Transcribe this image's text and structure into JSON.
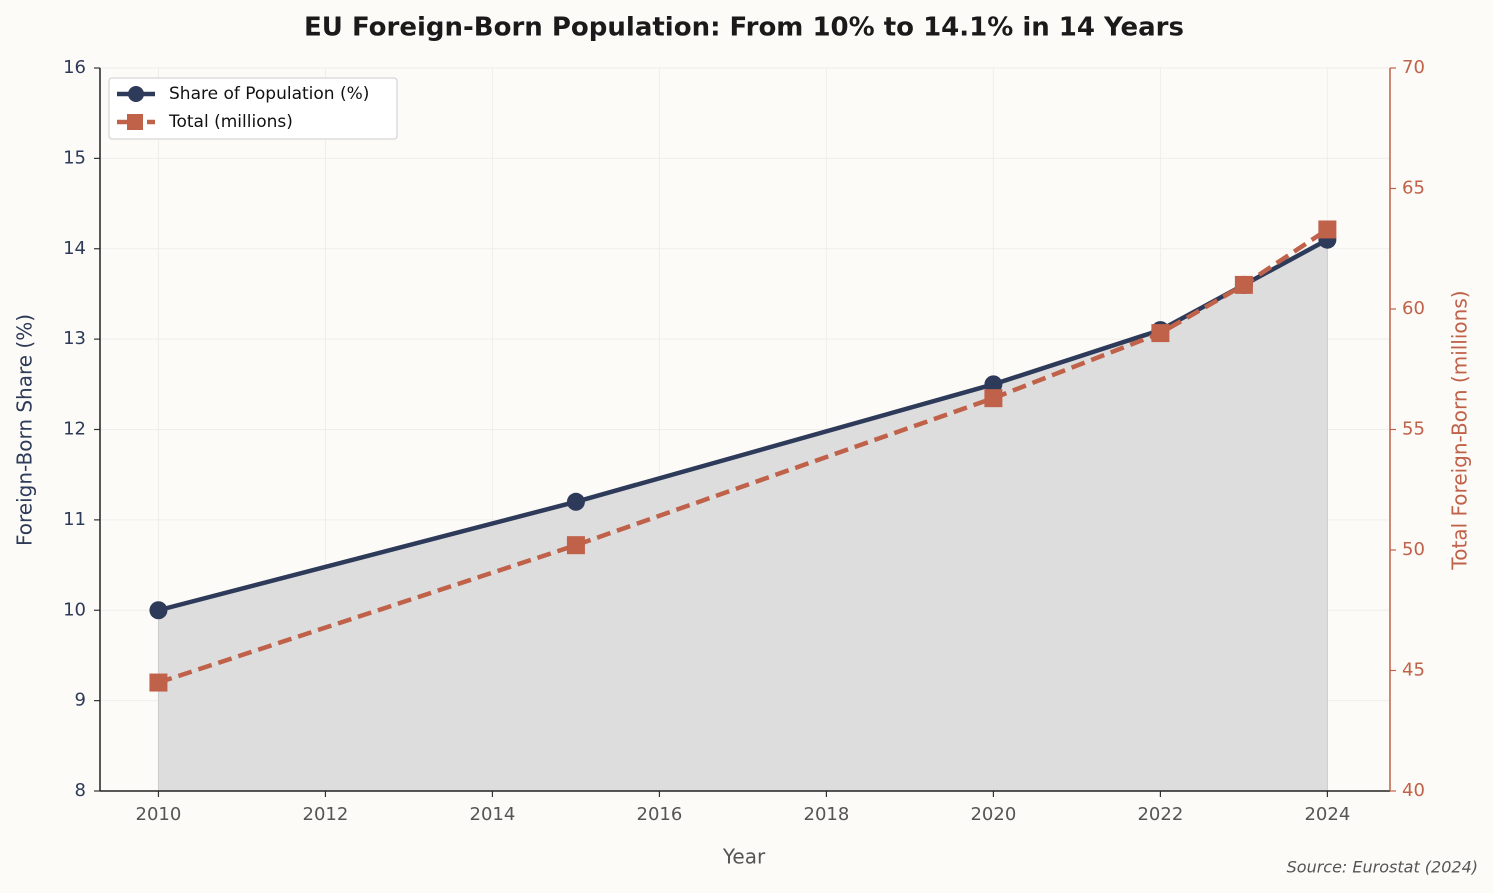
{
  "chart_data": {
    "type": "line",
    "title": "EU Foreign-Born Population: From 10% to 14.1% in 14 Years",
    "source": "Source: Eurostat (2024)",
    "xlabel": "Year",
    "ylabel": "Foreign-Born Share (%)",
    "y2label": "Total Foreign-Born (millions)",
    "x": [
      2010,
      2015,
      2020,
      2022,
      2023,
      2024
    ],
    "series": [
      {
        "name": "Share of Population (%)",
        "color": "#2e3a59",
        "linestyle": "solid",
        "marker": "circle",
        "fill": "#dddddd",
        "values": [
          10,
          11.2,
          12.5,
          13.1,
          13.6,
          14.1
        ]
      },
      {
        "name": "Total (millions)",
        "color": "#c0614a",
        "linestyle": "dashed",
        "marker": "square",
        "axis": "y2",
        "values": [
          44.5,
          50.2,
          56.3,
          59.0,
          61.0,
          63.3
        ]
      }
    ],
    "xlim": [
      2009.3,
      2024.75
    ],
    "xticks": [
      2010,
      2012,
      2014,
      2016,
      2018,
      2020,
      2022,
      2024
    ],
    "ylim": [
      8,
      16
    ],
    "yticks": [
      8,
      9,
      10,
      11,
      12,
      13,
      14,
      15,
      16
    ],
    "y2lim": [
      40,
      70
    ],
    "y2ticks": [
      40,
      45,
      50,
      55,
      60,
      65,
      70
    ],
    "grid": true,
    "legend": "upper-left"
  }
}
